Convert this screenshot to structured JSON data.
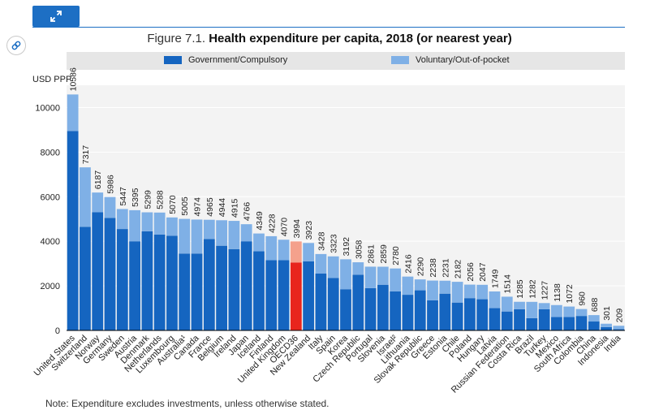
{
  "toolbar": {
    "expand_icon": "expand-arrows-icon",
    "link_icon": "link-icon"
  },
  "figure": {
    "number": "Figure 7.1.",
    "title": "Health expenditure per capita, 2018 (or nearest year)"
  },
  "note": "Note: Expenditure excludes investments, unless otherwise stated.",
  "colors": {
    "government": "#1565c0",
    "voluntary": "#7fb0e6",
    "oecd_government": "#e8251d",
    "oecd_voluntary": "#f4a18c",
    "legend_bg": "#e6e6e6",
    "accent": "#1d6fc4"
  },
  "chart_data": {
    "type": "bar",
    "stacked": true,
    "title": "Health expenditure per capita, 2018 (or nearest year)",
    "ylabel": "USD PPP",
    "ylim": [
      0,
      11000
    ],
    "yticks": [
      0,
      2000,
      4000,
      6000,
      8000,
      10000
    ],
    "legend_position": "top",
    "highlight": "OECD36",
    "categories": [
      "United States",
      "Switzerland",
      "Norway",
      "Germany",
      "Sweden",
      "Austria",
      "Denmark",
      "Netherlands",
      "Luxembourg",
      "Australia¹",
      "Canada",
      "France",
      "Belgium",
      "Ireland",
      "Japan",
      "Iceland",
      "Finland",
      "United Kingdom",
      "OECD36",
      "New Zealand",
      "Italy",
      "Spain",
      "Korea",
      "Czech Republic",
      "Portugal",
      "Slovenia",
      "Israel²",
      "Lithuania",
      "Slovak Republic",
      "Greece",
      "Estonia",
      "Chile",
      "Poland",
      "Hungary",
      "Latvia",
      "Russian Federation",
      "Costa Rica",
      "Brazil",
      "Turkey",
      "Mexico",
      "South Africa",
      "Colombia",
      "China",
      "Indonesia",
      "India"
    ],
    "totals": [
      "10586",
      "7317",
      "6187",
      "5986",
      "5447",
      "5395",
      "5299",
      "5288",
      "5070",
      "5005",
      "4974",
      "4965",
      "4944",
      "4915",
      "4766",
      "4349",
      "4228",
      "4070",
      "3994",
      "3923",
      "3428",
      "3323",
      "3192",
      "3058",
      "2861",
      "2859",
      "2780",
      "2416",
      "2290",
      "2238",
      "2231",
      "2182",
      "2056",
      "2047",
      "1749",
      "1514",
      "1285",
      "1282",
      "1227",
      "1138",
      "1072",
      "960",
      "688",
      "301",
      "209"
    ],
    "series": [
      {
        "name": "Government/Compulsory",
        "values": [
          8950,
          4650,
          5300,
          5050,
          4550,
          4000,
          4450,
          4300,
          4250,
          3450,
          3450,
          4100,
          3800,
          3650,
          4000,
          3550,
          3150,
          3150,
          3050,
          3100,
          2550,
          2350,
          1850,
          2500,
          1900,
          2050,
          1750,
          1600,
          1800,
          1350,
          1650,
          1250,
          1450,
          1400,
          1000,
          850,
          950,
          550,
          950,
          600,
          600,
          650,
          400,
          150,
          60
        ]
      },
      {
        "name": "Voluntary/Out-of-pocket",
        "values": [
          1636,
          2667,
          887,
          936,
          897,
          1395,
          849,
          988,
          820,
          1555,
          1524,
          865,
          1144,
          1265,
          766,
          799,
          1078,
          920,
          944,
          823,
          878,
          973,
          1342,
          558,
          961,
          809,
          1030,
          816,
          490,
          888,
          581,
          932,
          606,
          647,
          749,
          664,
          335,
          732,
          277,
          538,
          472,
          310,
          288,
          151,
          149
        ]
      }
    ]
  }
}
